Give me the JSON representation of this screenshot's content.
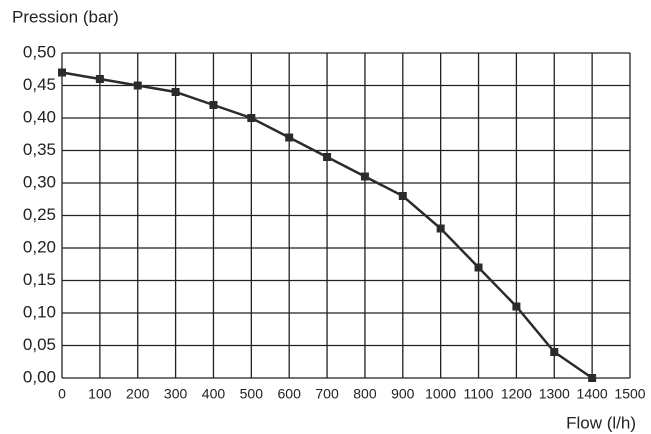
{
  "chart_data": {
    "type": "line",
    "y_label": "Pression (bar)",
    "x_label": "Flow (l/h)",
    "x": [
      0,
      100,
      200,
      300,
      400,
      500,
      600,
      700,
      800,
      900,
      1000,
      1100,
      1200,
      1300,
      1400
    ],
    "values": [
      0.47,
      0.46,
      0.45,
      0.44,
      0.42,
      0.4,
      0.37,
      0.34,
      0.31,
      0.28,
      0.23,
      0.17,
      0.11,
      0.04,
      0.0
    ],
    "color": "#2b2b2b",
    "xlim": [
      0,
      1500
    ],
    "xticks": [
      0,
      100,
      200,
      300,
      400,
      500,
      600,
      700,
      800,
      900,
      1000,
      1100,
      1200,
      1300,
      1400,
      1500
    ],
    "ylim": [
      0,
      0.5
    ],
    "yticks": [
      {
        "value": 0,
        "label": "0,00"
      },
      {
        "value": 0.05,
        "label": "0,05"
      },
      {
        "value": 0.1,
        "label": "0,10"
      },
      {
        "value": 0.15,
        "label": "0,15"
      },
      {
        "value": 0.2,
        "label": "0,20"
      },
      {
        "value": 0.25,
        "label": "0,25"
      },
      {
        "value": 0.3,
        "label": "0,30"
      },
      {
        "value": 0.35,
        "label": "0,35"
      },
      {
        "value": 0.4,
        "label": "0,40"
      },
      {
        "value": 0.45,
        "label": "0,45"
      },
      {
        "value": 0.5,
        "label": "0,50"
      }
    ],
    "grid": true
  }
}
